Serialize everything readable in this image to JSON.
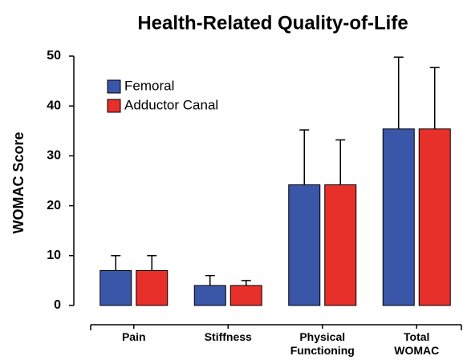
{
  "chart_data": {
    "type": "bar",
    "title": "Health-Related Quality-of-Life",
    "y_label": "WOMAC Score",
    "categories": [
      "Pain",
      "Stiffness",
      "Physical Functioning",
      "Total WOMAC"
    ],
    "series": [
      {
        "name": "Femoral",
        "color": "#3a56a8",
        "values": [
          7,
          4,
          24.2,
          35.4
        ],
        "errors": [
          3,
          2,
          11,
          14.4
        ]
      },
      {
        "name": "Adductor Canal",
        "color": "#e8302a",
        "values": [
          7,
          4,
          24.2,
          35.4
        ],
        "errors": [
          3,
          1,
          9,
          12.3
        ]
      }
    ],
    "ylim": [
      0,
      50
    ],
    "yticks": [
      0,
      10,
      20,
      30,
      40,
      50
    ],
    "legend": "upper left"
  }
}
